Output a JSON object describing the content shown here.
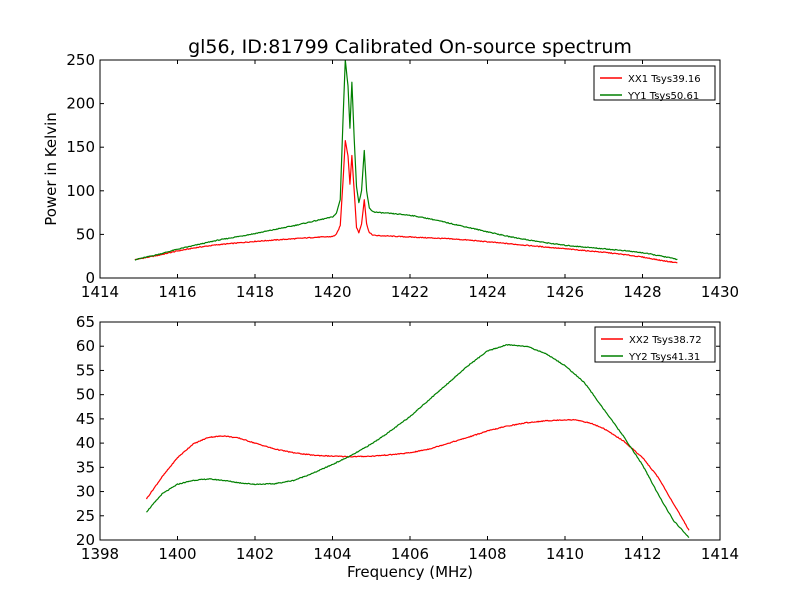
{
  "figure_title": "gl56, ID:81799 Calibrated On-source spectrum",
  "chart_data": [
    {
      "type": "line",
      "title": "gl56, ID:81799 Calibrated On-source spectrum",
      "xlabel": "",
      "ylabel": "Power in Kelvin",
      "xlim": [
        1414,
        1430
      ],
      "ylim": [
        0,
        250
      ],
      "xticks": [
        1414,
        1416,
        1418,
        1420,
        1422,
        1424,
        1426,
        1428,
        1430
      ],
      "yticks": [
        0,
        50,
        100,
        150,
        200,
        250
      ],
      "grid": false,
      "legend": "upper right",
      "series": [
        {
          "name": "XX1 Tsys39.16",
          "color": "#ff0000",
          "x": [
            1414.9,
            1415.5,
            1416.0,
            1416.5,
            1417.0,
            1417.5,
            1418.0,
            1418.5,
            1419.0,
            1419.5,
            1420.0,
            1420.1,
            1420.2,
            1420.27,
            1420.33,
            1420.4,
            1420.45,
            1420.5,
            1420.56,
            1420.62,
            1420.68,
            1420.75,
            1420.82,
            1420.88,
            1420.95,
            1421.05,
            1421.2,
            1421.5,
            1422.0,
            1422.5,
            1423.0,
            1423.5,
            1424.0,
            1424.5,
            1425.0,
            1425.5,
            1426.0,
            1426.5,
            1427.0,
            1427.5,
            1428.0,
            1428.5,
            1428.9
          ],
          "y": [
            21,
            26,
            31,
            35,
            38,
            40,
            42,
            43.5,
            45,
            46.5,
            47.5,
            50,
            60,
            110,
            158,
            140,
            108,
            140,
            100,
            58,
            52,
            62,
            90,
            62,
            52,
            49,
            48.5,
            48,
            47,
            46,
            45,
            43.5,
            41.5,
            39.5,
            37.5,
            35.5,
            33.5,
            31.5,
            29.5,
            27,
            24,
            20,
            17.5
          ]
        },
        {
          "name": "YY1 Tsys50.61",
          "color": "#008000",
          "x": [
            1414.9,
            1415.5,
            1416.0,
            1416.5,
            1417.0,
            1417.5,
            1418.0,
            1418.5,
            1419.0,
            1419.5,
            1420.0,
            1420.1,
            1420.2,
            1420.27,
            1420.33,
            1420.4,
            1420.45,
            1420.5,
            1420.56,
            1420.62,
            1420.68,
            1420.75,
            1420.82,
            1420.88,
            1420.95,
            1421.05,
            1421.2,
            1421.5,
            1422.0,
            1422.5,
            1423.0,
            1423.5,
            1424.0,
            1424.5,
            1425.0,
            1425.5,
            1426.0,
            1426.5,
            1427.0,
            1427.5,
            1428.0,
            1428.5,
            1428.9
          ],
          "y": [
            21,
            27,
            33,
            38,
            43,
            47,
            51,
            55.5,
            60,
            65,
            70,
            74,
            90,
            180,
            250,
            220,
            172,
            225,
            160,
            105,
            86,
            100,
            146,
            100,
            80,
            76,
            75,
            74,
            72,
            68,
            63,
            58,
            53,
            48,
            44,
            40.5,
            37.5,
            35.5,
            33.5,
            31.5,
            29,
            25,
            21.5
          ]
        }
      ]
    },
    {
      "type": "line",
      "title": "",
      "xlabel": "Frequency (MHz)",
      "ylabel": "",
      "xlim": [
        1398,
        1414
      ],
      "ylim": [
        20,
        65
      ],
      "xticks": [
        1398,
        1400,
        1402,
        1404,
        1406,
        1408,
        1410,
        1412,
        1414
      ],
      "yticks": [
        20,
        25,
        30,
        35,
        40,
        45,
        50,
        55,
        60,
        65
      ],
      "grid": false,
      "legend": "upper right",
      "series": [
        {
          "name": "XX2 Tsys38.72",
          "color": "#ff0000",
          "x": [
            1399.2,
            1399.6,
            1400.0,
            1400.4,
            1400.8,
            1401.2,
            1401.6,
            1402.0,
            1402.5,
            1403.0,
            1403.5,
            1404.0,
            1404.5,
            1405.0,
            1405.5,
            1406.0,
            1406.5,
            1407.0,
            1407.5,
            1408.0,
            1408.5,
            1409.0,
            1409.5,
            1410.0,
            1410.3,
            1410.7,
            1411.0,
            1411.5,
            1412.0,
            1412.4,
            1412.8,
            1413.2
          ],
          "y": [
            28.5,
            33,
            37,
            39.8,
            41.2,
            41.5,
            41.0,
            40.0,
            38.8,
            38.0,
            37.5,
            37.3,
            37.2,
            37.3,
            37.6,
            38.0,
            38.8,
            40.0,
            41.2,
            42.5,
            43.5,
            44.2,
            44.6,
            44.8,
            44.8,
            44.0,
            43.0,
            40.5,
            37.0,
            33.0,
            27.5,
            22.0
          ]
        },
        {
          "name": "YY2 Tsys41.31",
          "color": "#008000",
          "x": [
            1399.2,
            1399.6,
            1400.0,
            1400.4,
            1400.8,
            1401.2,
            1401.6,
            1402.0,
            1402.5,
            1403.0,
            1403.5,
            1404.0,
            1404.5,
            1405.0,
            1405.5,
            1406.0,
            1406.5,
            1407.0,
            1407.5,
            1408.0,
            1408.5,
            1409.0,
            1409.5,
            1410.0,
            1410.5,
            1411.0,
            1411.5,
            1412.0,
            1412.4,
            1412.8,
            1413.2
          ],
          "y": [
            25.8,
            29.5,
            31.5,
            32.3,
            32.6,
            32.3,
            31.8,
            31.5,
            31.6,
            32.3,
            33.8,
            35.6,
            37.5,
            39.8,
            42.5,
            45.5,
            49.0,
            52.5,
            56.0,
            59.0,
            60.3,
            60.0,
            58.5,
            56.0,
            52.5,
            47.0,
            41.5,
            35.5,
            29.5,
            24.0,
            20.5
          ]
        }
      ]
    }
  ]
}
